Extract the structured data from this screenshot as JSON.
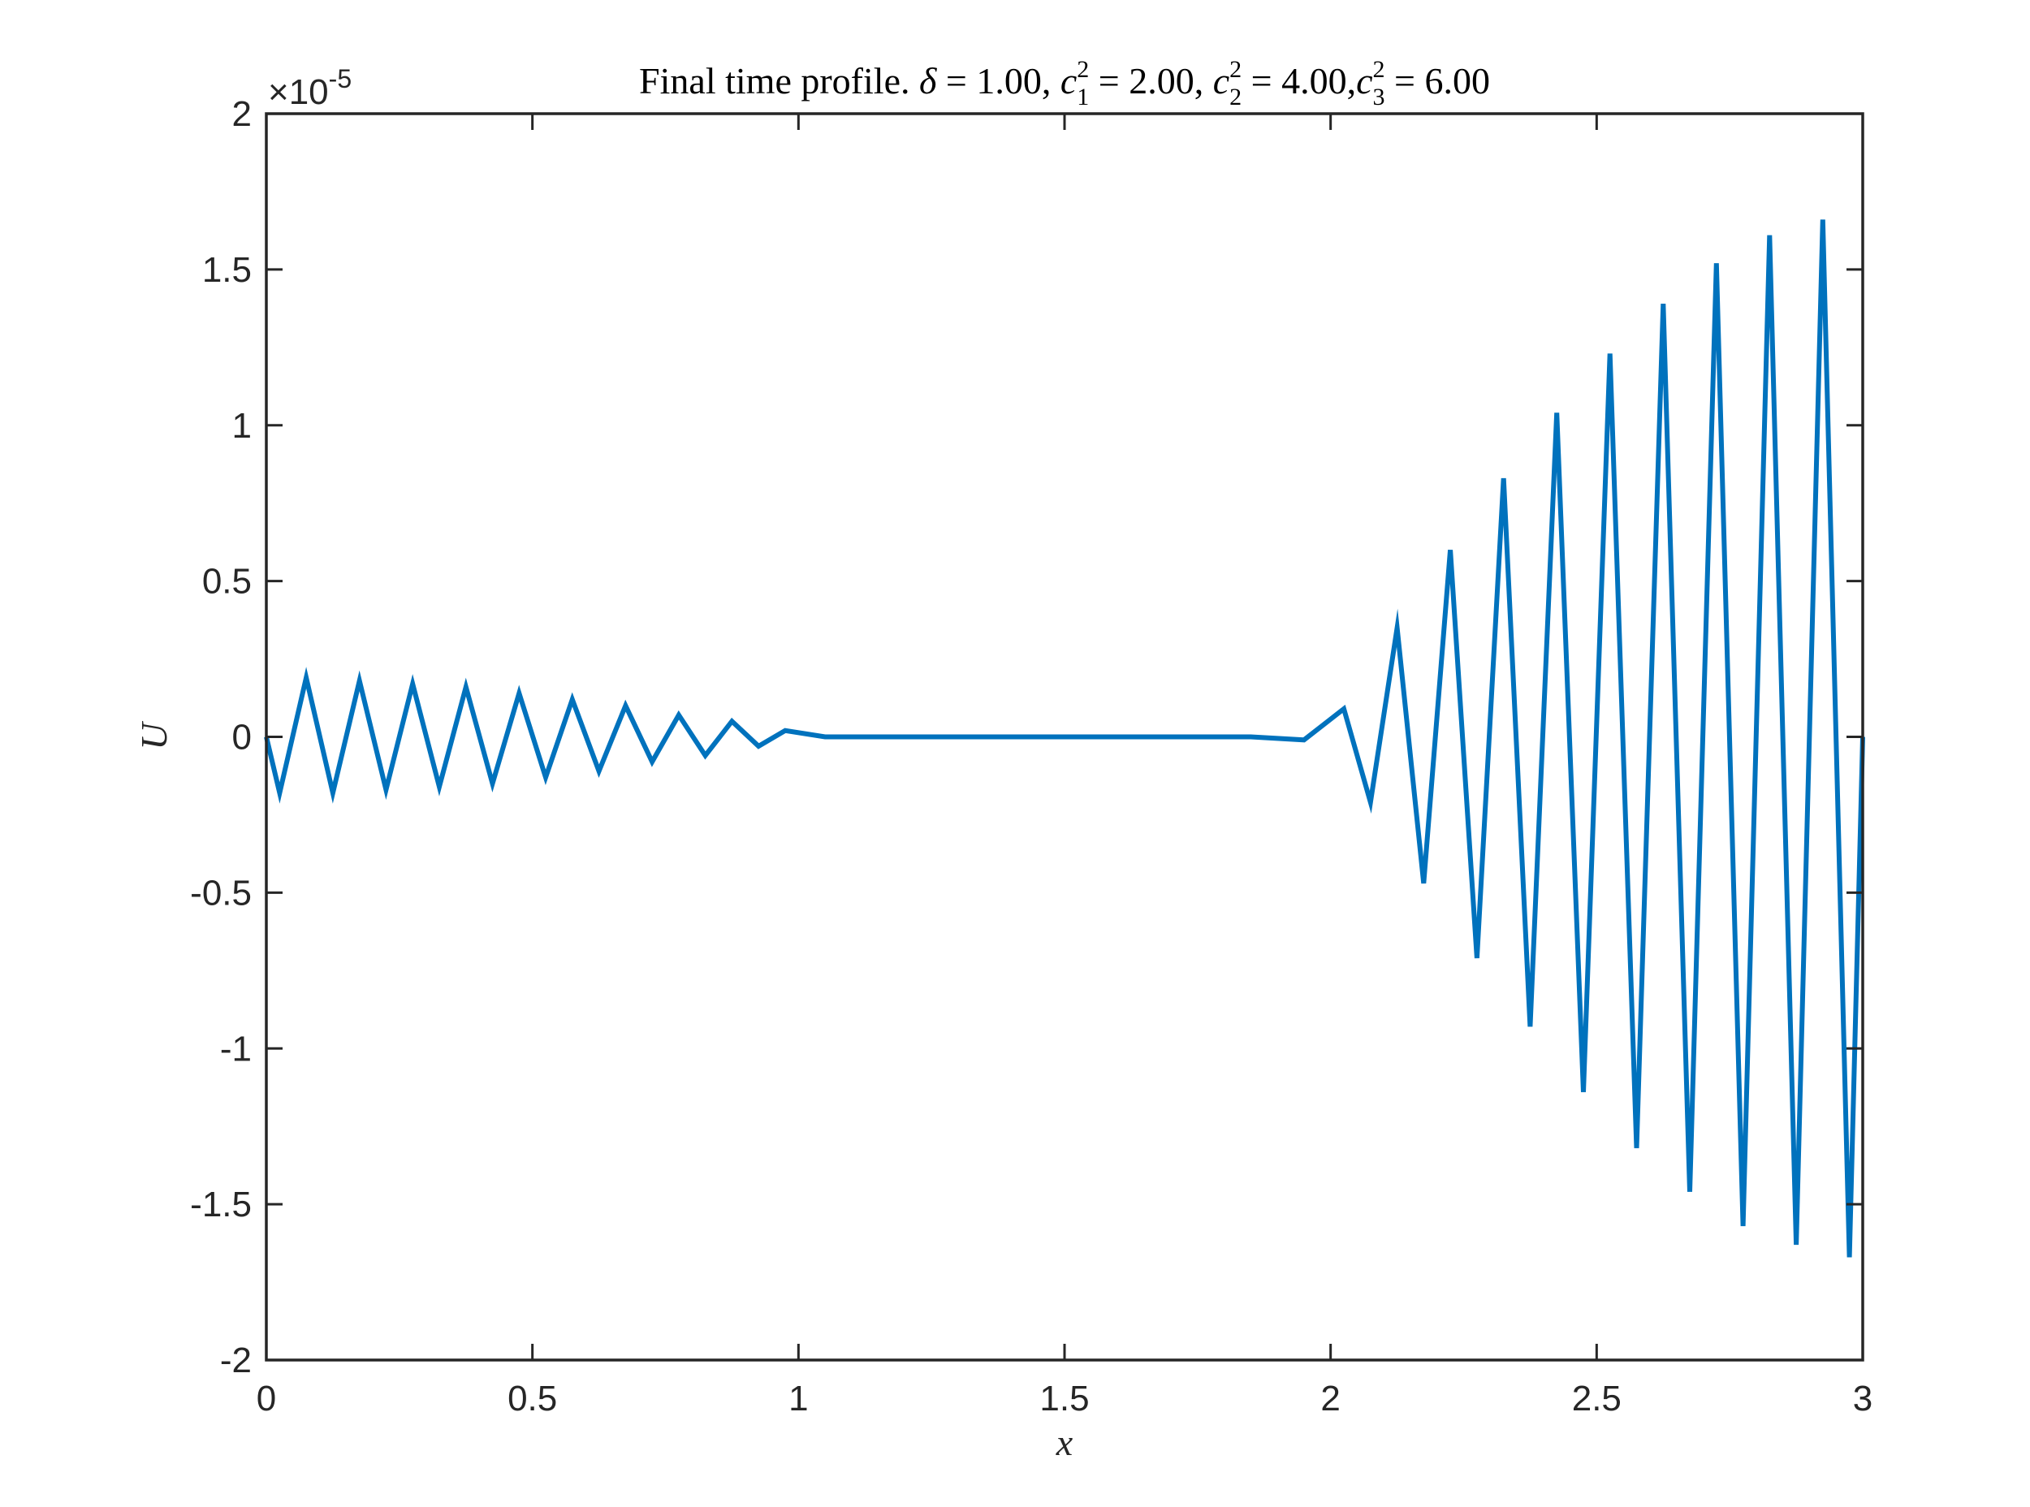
{
  "chart_data": {
    "type": "line",
    "title": {
      "prefix": "Final time profile. ",
      "delta_symbol": "δ",
      "delta_value": " = 1.00, ",
      "c1_base": "c",
      "c1_sup": "2",
      "c1_sub": "1",
      "c1_value": " = 2.00, ",
      "c2_base": "c",
      "c2_sup": "2",
      "c2_sub": "2",
      "c2_value": " = 4.00,",
      "c3_base": "c",
      "c3_sup": "2",
      "c3_sub": "3",
      "c3_value": " = 6.00"
    },
    "xlabel": "x",
    "ylabel": "U",
    "y_multiplier": {
      "times": "×",
      "base": "10",
      "exponent": "-5"
    },
    "xlim": [
      0,
      3
    ],
    "ylim": [
      -2,
      2
    ],
    "xticks": [
      0,
      0.5,
      1,
      1.5,
      2,
      2.5,
      3
    ],
    "xtick_labels": [
      "0",
      "0.5",
      "1",
      "1.5",
      "2",
      "2.5",
      "3"
    ],
    "yticks": [
      -2,
      -1.5,
      -1,
      -0.5,
      0,
      0.5,
      1,
      1.5,
      2
    ],
    "ytick_labels": [
      "-2",
      "-1.5",
      "-1",
      "-0.5",
      "0",
      "0.5",
      "1",
      "1.5",
      "2"
    ],
    "grid": false,
    "line_color": "#0072BD",
    "series": [
      {
        "x": [
          0,
          0.025,
          0.075,
          0.125,
          0.175,
          0.225,
          0.275,
          0.325,
          0.375,
          0.425,
          0.475,
          0.525,
          0.575,
          0.625,
          0.675,
          0.725,
          0.775,
          0.825,
          0.875,
          0.925,
          0.975,
          1.05,
          1.15,
          1.25,
          1.35,
          1.45,
          1.55,
          1.65,
          1.75,
          1.85,
          1.95,
          2.025,
          2.075,
          2.125,
          2.175,
          2.225,
          2.275,
          2.325,
          2.375,
          2.425,
          2.475,
          2.525,
          2.575,
          2.625,
          2.675,
          2.725,
          2.775,
          2.825,
          2.875,
          2.925,
          2.975,
          3.0
        ],
        "y": [
          0,
          -0.18,
          0.19,
          -0.18,
          0.18,
          -0.17,
          0.17,
          -0.16,
          0.16,
          -0.15,
          0.14,
          -0.13,
          0.12,
          -0.11,
          0.1,
          -0.08,
          0.07,
          -0.06,
          0.05,
          -0.03,
          0.02,
          0.0,
          0.0,
          0.0,
          0.0,
          0.0,
          0.0,
          0.0,
          0.0,
          0.0,
          -0.01,
          0.09,
          -0.21,
          0.35,
          -0.47,
          0.6,
          -0.71,
          0.83,
          -0.93,
          1.04,
          -1.14,
          1.23,
          -1.32,
          1.39,
          -1.46,
          1.52,
          -1.57,
          1.61,
          -1.63,
          1.66,
          -1.67,
          0
        ]
      }
    ]
  }
}
